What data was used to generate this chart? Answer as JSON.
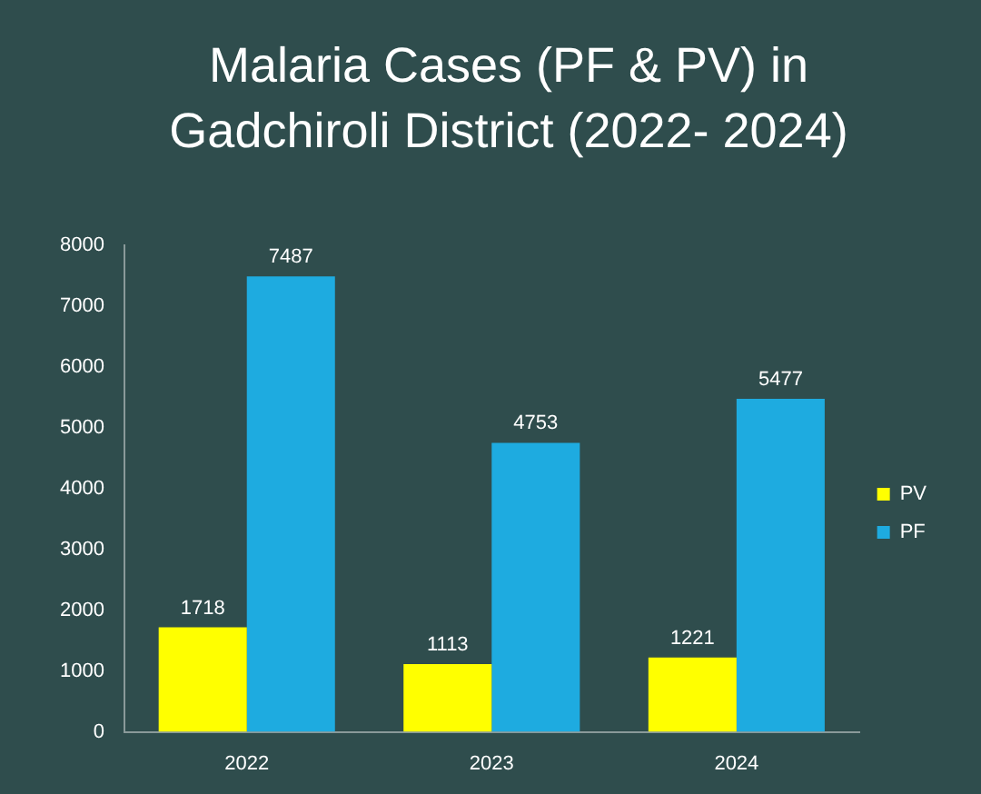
{
  "chart_data": {
    "type": "bar",
    "title": "Malaria Cases (PF & PV) in Gadchiroli District (2022- 2024)",
    "categories": [
      "2022",
      "2023",
      "2024"
    ],
    "series": [
      {
        "name": "PV",
        "color": "#ffff00",
        "values": [
          1718,
          1113,
          1221
        ]
      },
      {
        "name": "PF",
        "color": "#1eabe0",
        "values": [
          7487,
          4753,
          5477
        ]
      }
    ],
    "ylim": [
      0,
      8000
    ],
    "yticks": [
      0,
      1000,
      2000,
      3000,
      4000,
      5000,
      6000,
      7000,
      8000
    ],
    "grid": false,
    "legend": "right",
    "data_labels": true
  }
}
